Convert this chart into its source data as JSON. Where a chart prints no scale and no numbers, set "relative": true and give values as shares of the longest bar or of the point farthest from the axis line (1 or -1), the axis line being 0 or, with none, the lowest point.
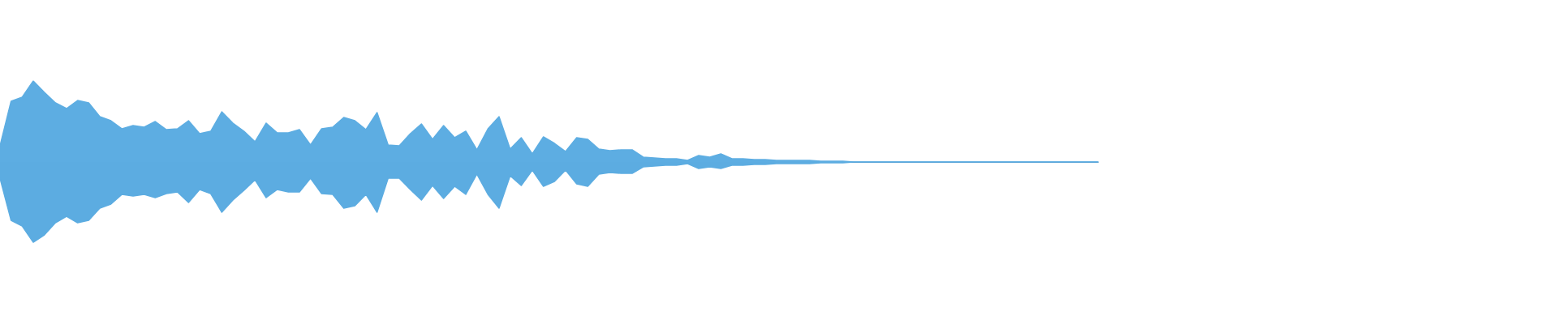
{
  "chart_data": {
    "type": "area",
    "relative": true,
    "categories": [
      null,
      null,
      null,
      null,
      null,
      null,
      null,
      null,
      null,
      null,
      null,
      null,
      null,
      null,
      null,
      null,
      null,
      null,
      null,
      null,
      null,
      null,
      null,
      null,
      null,
      null,
      null,
      null,
      null,
      null,
      null,
      null,
      null,
      null,
      null,
      null,
      null,
      null,
      null,
      null,
      null,
      null,
      null,
      null,
      null,
      null,
      null,
      null,
      null,
      null,
      null,
      null,
      null,
      null,
      null,
      null,
      null,
      null,
      null,
      null,
      null,
      null,
      null,
      null,
      null,
      null,
      null,
      null,
      null,
      null,
      null,
      null,
      null,
      null,
      null,
      null,
      null,
      null,
      null,
      null,
      null,
      null,
      null,
      null,
      null,
      null,
      null,
      null,
      null,
      null,
      null,
      null,
      null,
      null,
      null,
      null,
      null,
      null,
      null,
      null
    ],
    "series": [
      {
        "color": "#5dade2",
        "values": [
          0.2,
          0.75,
          0.8,
          1.0,
          0.86,
          0.73,
          0.66,
          0.76,
          0.73,
          0.56,
          0.51,
          0.41,
          0.45,
          0.43,
          0.5,
          0.4,
          0.41,
          0.51,
          0.35,
          0.38,
          0.62,
          0.48,
          0.38,
          0.25,
          0.48,
          0.36,
          0.36,
          0.4,
          0.21,
          0.41,
          0.43,
          0.55,
          0.51,
          0.4,
          0.61,
          0.21,
          0.2,
          0.35,
          0.47,
          0.28,
          0.45,
          0.3,
          0.38,
          0.15,
          0.41,
          0.56,
          0.16,
          0.3,
          0.1,
          0.31,
          0.23,
          0.13,
          0.3,
          0.28,
          0.16,
          0.14,
          0.15,
          0.15,
          0.06,
          0.05,
          0.04,
          0.04,
          0.02,
          0.08,
          0.06,
          0.1,
          0.04,
          0.04,
          0.03,
          0.03,
          0.02,
          0.02,
          0.02,
          0.02,
          0.01,
          0.01,
          0.01,
          0,
          0,
          0,
          0,
          0,
          0,
          0,
          0,
          0,
          0,
          0,
          0,
          0,
          0,
          0,
          0,
          0,
          0,
          0,
          0,
          0,
          0,
          0
        ]
      },
      {
        "color": "#5cace1",
        "values": [
          -0.2,
          -0.72,
          -0.79,
          -0.99,
          -0.9,
          -0.75,
          -0.67,
          -0.75,
          -0.72,
          -0.57,
          -0.52,
          -0.4,
          -0.42,
          -0.4,
          -0.44,
          -0.39,
          -0.37,
          -0.5,
          -0.34,
          -0.39,
          -0.62,
          -0.47,
          -0.35,
          -0.22,
          -0.44,
          -0.34,
          -0.37,
          -0.37,
          -0.2,
          -0.39,
          -0.4,
          -0.57,
          -0.54,
          -0.4,
          -0.62,
          -0.2,
          -0.2,
          -0.34,
          -0.47,
          -0.29,
          -0.45,
          -0.3,
          -0.4,
          -0.15,
          -0.4,
          -0.57,
          -0.17,
          -0.29,
          -0.1,
          -0.3,
          -0.24,
          -0.1,
          -0.27,
          -0.3,
          -0.15,
          -0.13,
          -0.14,
          -0.14,
          -0.06,
          -0.05,
          -0.04,
          -0.04,
          -0.02,
          -0.08,
          -0.06,
          -0.08,
          -0.04,
          -0.04,
          -0.03,
          -0.03,
          -0.02,
          -0.02,
          -0.02,
          -0.02,
          -0.01,
          -0.01,
          -0.01,
          0,
          0,
          0,
          0,
          0,
          0,
          0,
          0,
          0,
          0,
          0,
          0,
          0,
          0,
          0,
          0,
          0,
          0,
          0,
          0,
          0,
          0,
          0
        ]
      }
    ]
  }
}
